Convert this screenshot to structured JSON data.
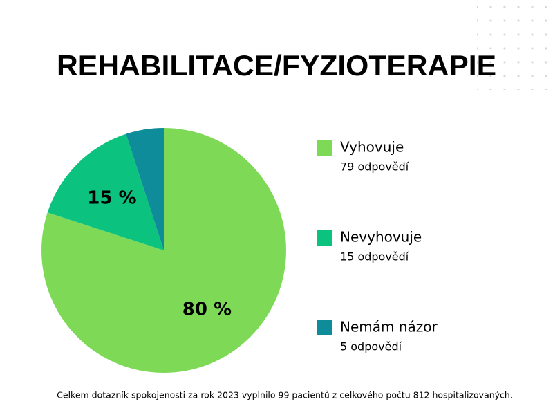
{
  "chart_data": {
    "type": "pie",
    "title": "REHABILITACE/FYZIOTERAPIE",
    "categories": [
      "Vyhovuje",
      "Nevyhovuje",
      "Nemám názor"
    ],
    "values": [
      80,
      15,
      5
    ],
    "value_labels": [
      "80 %",
      "15 %",
      null
    ],
    "colors": [
      "#7ed957",
      "#0cc27f",
      "#0e8c99"
    ],
    "legend_details": [
      "79 odpovědí",
      "15 odpovědí",
      "5 odpovědí"
    ],
    "note": "Celkem dotazník spokojenosti za rok  2023 vyplnilo 99 pacientů z celkového počtu 812 hospitalizovaných."
  }
}
